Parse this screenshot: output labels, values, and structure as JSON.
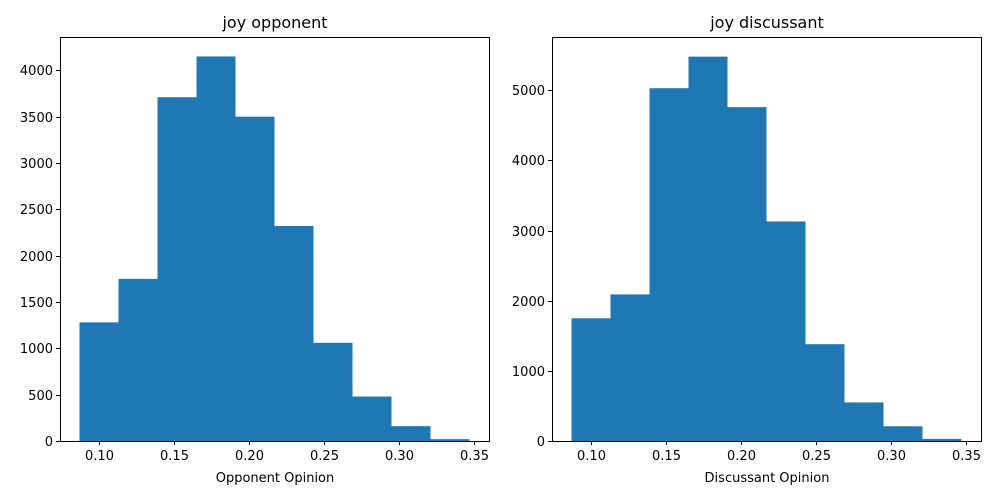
{
  "chart_data": [
    {
      "type": "bar",
      "title": "joy opponent",
      "xlabel": "Opponent Opinion",
      "ylabel": "",
      "color": "#1f77b4",
      "bin_edges": [
        0.087,
        0.113,
        0.139,
        0.165,
        0.191,
        0.217,
        0.243,
        0.269,
        0.295,
        0.321,
        0.347
      ],
      "values": [
        1280,
        1750,
        3710,
        4150,
        3500,
        2320,
        1060,
        480,
        160,
        20
      ],
      "xlim": [
        0.074,
        0.36
      ],
      "ylim": [
        0,
        4360
      ],
      "xticks": [
        0.1,
        0.15,
        0.2,
        0.25,
        0.3,
        0.35
      ],
      "xtick_labels": [
        "0.10",
        "0.15",
        "0.20",
        "0.25",
        "0.30",
        "0.35"
      ],
      "yticks": [
        0,
        500,
        1000,
        1500,
        2000,
        2500,
        3000,
        3500,
        4000
      ],
      "ytick_labels": [
        "0",
        "500",
        "1000",
        "1500",
        "2000",
        "2500",
        "3000",
        "3500",
        "4000"
      ],
      "grid": false
    },
    {
      "type": "bar",
      "title": "joy discussant",
      "xlabel": "Discussant Opinion",
      "ylabel": "",
      "color": "#1f77b4",
      "bin_edges": [
        0.087,
        0.113,
        0.139,
        0.165,
        0.191,
        0.217,
        0.243,
        0.269,
        0.295,
        0.321,
        0.347
      ],
      "values": [
        1750,
        2090,
        5030,
        5480,
        4760,
        3130,
        1380,
        550,
        210,
        30
      ],
      "xlim": [
        0.074,
        0.36
      ],
      "ylim": [
        0,
        5760
      ],
      "xticks": [
        0.1,
        0.15,
        0.2,
        0.25,
        0.3,
        0.35
      ],
      "xtick_labels": [
        "0.10",
        "0.15",
        "0.20",
        "0.25",
        "0.30",
        "0.35"
      ],
      "yticks": [
        0,
        1000,
        2000,
        3000,
        4000,
        5000
      ],
      "ytick_labels": [
        "0",
        "1000",
        "2000",
        "3000",
        "4000",
        "5000"
      ],
      "grid": false
    }
  ]
}
